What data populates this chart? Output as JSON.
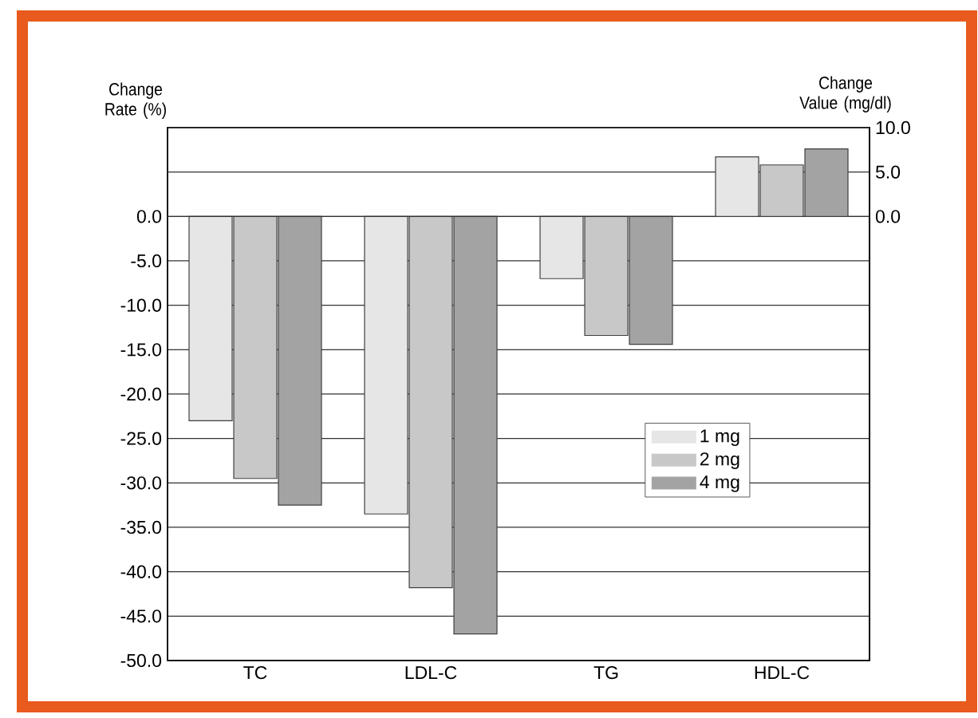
{
  "chart_data": {
    "type": "bar",
    "categories": [
      "TC",
      "LDL-C",
      "TG",
      "HDL-C"
    ],
    "ylabel": "Change Rate (%)",
    "y2label": "Change Value (mg/dl)",
    "ylim": [
      -50,
      10
    ],
    "yticks": [
      {
        "value": -50,
        "label": "-50.0"
      },
      {
        "value": -45,
        "label": "-45.0"
      },
      {
        "value": -40,
        "label": "-40.0"
      },
      {
        "value": -35,
        "label": "-35.0"
      },
      {
        "value": -30,
        "label": "-30.0"
      },
      {
        "value": -25,
        "label": "-25.0"
      },
      {
        "value": -20,
        "label": "-20.0"
      },
      {
        "value": -15,
        "label": "-15.0"
      },
      {
        "value": -10,
        "label": "-10.0"
      },
      {
        "value": -5,
        "label": "-5.0"
      },
      {
        "value": 0,
        "label": "0.0"
      }
    ],
    "y2lim": [
      -50,
      10
    ],
    "y2ticks": [
      {
        "value": 0,
        "label": "0.0"
      },
      {
        "value": 5,
        "label": "5.0"
      },
      {
        "value": 10,
        "label": "10.0"
      }
    ],
    "series": [
      {
        "name": "1 mg",
        "color": "#e6e6e6",
        "values": [
          -23.0,
          -33.5,
          -7.0,
          null
        ]
      },
      {
        "name": "2 mg",
        "color": "#c8c8c8",
        "values": [
          -29.5,
          -41.8,
          -13.4,
          null
        ]
      },
      {
        "name": "4 mg",
        "color": "#a3a3a3",
        "values": [
          -32.5,
          -47.0,
          -14.4,
          null
        ]
      },
      {
        "color": "#e6e6e6",
        "axis": "y2",
        "values": [
          null,
          null,
          null,
          6.7
        ]
      },
      {
        "color": "#c8c8c8",
        "axis": "y2",
        "values": [
          null,
          null,
          null,
          5.8
        ]
      },
      {
        "color": "#a3a3a3",
        "axis": "y2",
        "values": [
          null,
          null,
          null,
          7.6
        ]
      }
    ],
    "grid": "y",
    "legend": "right"
  }
}
